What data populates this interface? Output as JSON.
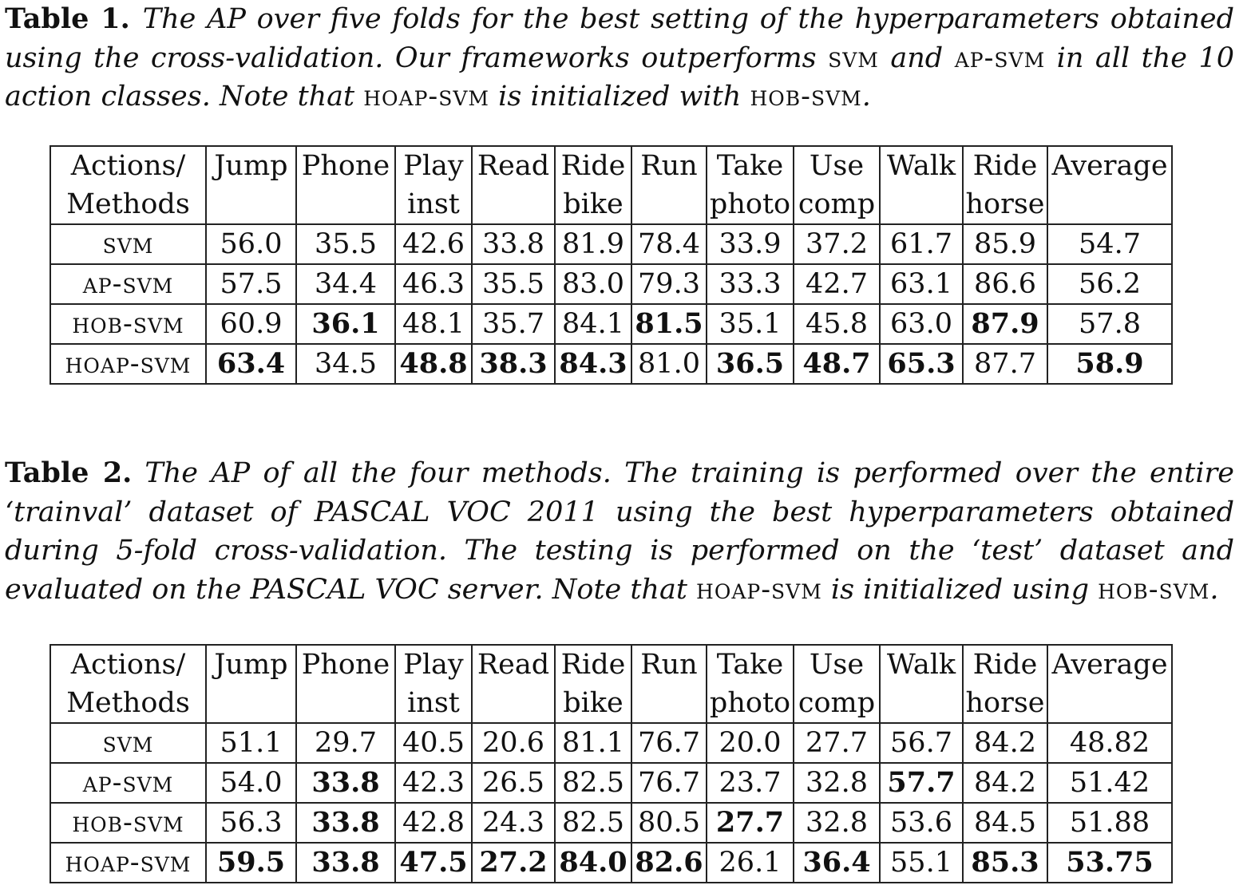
{
  "captions": [
    {
      "label": "Table 1.",
      "parts": [
        {
          "text": "The AP over five folds for the best setting of the hyperparameters obtained using the cross-validation. Our frameworks outperforms ",
          "sc": false
        },
        {
          "text": "svm",
          "sc": true
        },
        {
          "text": " and ",
          "sc": false
        },
        {
          "text": "ap-svm",
          "sc": true
        },
        {
          "text": " in all the 10 action classes. Note that ",
          "sc": false
        },
        {
          "text": "hoap-svm",
          "sc": true
        },
        {
          "text": " is initialized with ",
          "sc": false
        },
        {
          "text": "hob-svm",
          "sc": true
        },
        {
          "text": ".",
          "sc": false
        }
      ]
    },
    {
      "label": "Table 2.",
      "parts": [
        {
          "text": "The AP of all the four methods. The training is performed over the entire ‘trainval’ dataset of PASCAL VOC 2011 using the best hyperparameters obtained during 5-fold cross-validation. The testing is performed on the ‘test’ dataset and evaluated on the PASCAL VOC server. Note that ",
          "sc": false
        },
        {
          "text": "hoap-svm",
          "sc": true
        },
        {
          "text": " is initialized using ",
          "sc": false
        },
        {
          "text": "hob-svm",
          "sc": true
        },
        {
          "text": ".",
          "sc": false
        }
      ]
    }
  ],
  "tables": [
    {
      "headers": [
        [
          "Actions/",
          "Methods"
        ],
        [
          "Jump",
          ""
        ],
        [
          "Phone",
          ""
        ],
        [
          "Play",
          "inst"
        ],
        [
          "Read",
          ""
        ],
        [
          "Ride",
          "bike"
        ],
        [
          "Run",
          ""
        ],
        [
          "Take",
          "photo"
        ],
        [
          "Use",
          "comp"
        ],
        [
          "Walk",
          ""
        ],
        [
          "Ride",
          "horse"
        ],
        [
          "Average",
          ""
        ]
      ],
      "rows": [
        {
          "method": "svm",
          "values": [
            "56.0",
            "35.5",
            "42.6",
            "33.8",
            "81.9",
            "78.4",
            "33.9",
            "37.2",
            "61.7",
            "85.9",
            "54.7"
          ],
          "bold": []
        },
        {
          "method": "ap-svm",
          "values": [
            "57.5",
            "34.4",
            "46.3",
            "35.5",
            "83.0",
            "79.3",
            "33.3",
            "42.7",
            "63.1",
            "86.6",
            "56.2"
          ],
          "bold": []
        },
        {
          "method": "hob-svm",
          "values": [
            "60.9",
            "36.1",
            "48.1",
            "35.7",
            "84.1",
            "81.5",
            "35.1",
            "45.8",
            "63.0",
            "87.9",
            "57.8"
          ],
          "bold": [
            1,
            5,
            9
          ]
        },
        {
          "method": "hoap-svm",
          "values": [
            "63.4",
            "34.5",
            "48.8",
            "38.3",
            "84.3",
            "81.0",
            "36.5",
            "48.7",
            "65.3",
            "87.7",
            "58.9"
          ],
          "bold": [
            0,
            2,
            3,
            4,
            6,
            7,
            8,
            10
          ]
        }
      ]
    },
    {
      "headers": [
        [
          "Actions/",
          "Methods"
        ],
        [
          "Jump",
          ""
        ],
        [
          "Phone",
          ""
        ],
        [
          "Play",
          "inst"
        ],
        [
          "Read",
          ""
        ],
        [
          "Ride",
          "bike"
        ],
        [
          "Run",
          ""
        ],
        [
          "Take",
          "photo"
        ],
        [
          "Use",
          "comp"
        ],
        [
          "Walk",
          ""
        ],
        [
          "Ride",
          "horse"
        ],
        [
          "Average",
          ""
        ]
      ],
      "rows": [
        {
          "method": "svm",
          "values": [
            "51.1",
            "29.7",
            "40.5",
            "20.6",
            "81.1",
            "76.7",
            "20.0",
            "27.7",
            "56.7",
            "84.2",
            "48.82"
          ],
          "bold": []
        },
        {
          "method": "ap-svm",
          "values": [
            "54.0",
            "33.8",
            "42.3",
            "26.5",
            "82.5",
            "76.7",
            "23.7",
            "32.8",
            "57.7",
            "84.2",
            "51.42"
          ],
          "bold": [
            1,
            8
          ]
        },
        {
          "method": "hob-svm",
          "values": [
            "56.3",
            "33.8",
            "42.8",
            "24.3",
            "82.5",
            "80.5",
            "27.7",
            "32.8",
            "53.6",
            "84.5",
            "51.88"
          ],
          "bold": [
            1,
            6
          ]
        },
        {
          "method": "hoap-svm",
          "values": [
            "59.5",
            "33.8",
            "47.5",
            "27.2",
            "84.0",
            "82.6",
            "26.1",
            "36.4",
            "55.1",
            "85.3",
            "53.75"
          ],
          "bold": [
            0,
            1,
            2,
            3,
            4,
            5,
            7,
            9,
            10
          ]
        }
      ]
    }
  ]
}
